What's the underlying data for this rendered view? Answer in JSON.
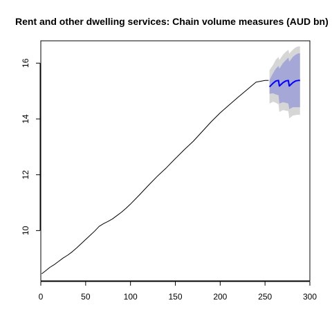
{
  "chart_data": {
    "type": "line",
    "title": "Rent and other dwelling services: Chain volume measures (AUD bn)",
    "xlabel": "",
    "ylabel": "",
    "xlim": [
      0,
      300
    ],
    "ylim": [
      8.2,
      16.8
    ],
    "x_ticks": [
      "0",
      "50",
      "100",
      "150",
      "200",
      "250",
      "300"
    ],
    "y_ticks": [
      "10",
      "12",
      "14",
      "16"
    ],
    "grid": false,
    "legend": "none",
    "colors": {
      "history": "#000000",
      "forecast": "#0000ff",
      "band_outer": "#d6d6d6",
      "band_inner": "#a5a8d6"
    },
    "series": [
      {
        "kind": "history",
        "x": [
          1,
          5,
          10,
          15,
          20,
          25,
          30,
          35,
          40,
          45,
          50,
          55,
          60,
          65,
          70,
          75,
          80,
          85,
          90,
          95,
          100,
          110,
          120,
          130,
          140,
          150,
          160,
          170,
          180,
          190,
          200,
          210,
          220,
          230,
          240,
          250,
          254
        ],
        "y": [
          8.45,
          8.55,
          8.68,
          8.78,
          8.9,
          9.02,
          9.12,
          9.24,
          9.38,
          9.53,
          9.68,
          9.83,
          9.98,
          10.15,
          10.25,
          10.33,
          10.42,
          10.54,
          10.66,
          10.8,
          10.95,
          11.28,
          11.62,
          11.95,
          12.25,
          12.58,
          12.9,
          13.2,
          13.55,
          13.9,
          14.22,
          14.5,
          14.78,
          15.05,
          15.32,
          15.38,
          15.38
        ]
      },
      {
        "kind": "forecast",
        "x": [
          255,
          259,
          262,
          265,
          266,
          270,
          273,
          276,
          277,
          281,
          284,
          287,
          289
        ],
        "y": [
          15.15,
          15.28,
          15.36,
          15.38,
          15.18,
          15.3,
          15.36,
          15.38,
          15.18,
          15.3,
          15.36,
          15.38,
          15.38
        ]
      }
    ],
    "bands": [
      {
        "level": "80",
        "x": [
          255,
          259,
          262,
          265,
          266,
          270,
          273,
          276,
          277,
          281,
          284,
          287,
          289
        ],
        "lower": [
          14.9,
          14.92,
          14.88,
          14.85,
          14.55,
          14.6,
          14.58,
          14.55,
          14.35,
          14.42,
          14.42,
          14.42,
          14.42
        ],
        "upper": [
          15.4,
          15.64,
          15.8,
          15.9,
          15.8,
          16.0,
          16.1,
          16.2,
          16.05,
          16.22,
          16.3,
          16.35,
          16.35
        ]
      },
      {
        "level": "95",
        "x": [
          255,
          259,
          262,
          265,
          266,
          270,
          273,
          276,
          277,
          281,
          284,
          287,
          289
        ],
        "lower": [
          14.55,
          14.62,
          14.58,
          14.53,
          14.25,
          14.32,
          14.3,
          14.28,
          14.02,
          14.12,
          14.14,
          14.15,
          14.15
        ],
        "upper": [
          15.75,
          15.94,
          16.12,
          16.22,
          16.11,
          16.3,
          16.4,
          16.48,
          16.34,
          16.48,
          16.56,
          16.6,
          16.6
        ]
      }
    ]
  }
}
